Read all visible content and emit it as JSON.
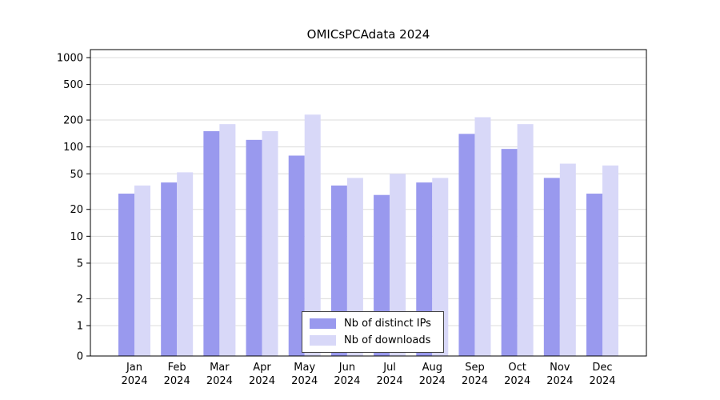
{
  "title": "OMICsPCAdata 2024",
  "legend": {
    "items": [
      {
        "label": "Nb of distinct IPs",
        "color": "#9999ee"
      },
      {
        "label": "Nb of downloads",
        "color": "#d8d8f8"
      }
    ]
  },
  "chart_data": {
    "type": "bar",
    "title": "OMICsPCAdata 2024",
    "categories": [
      "Jan 2024",
      "Feb 2024",
      "Mar 2024",
      "Apr 2024",
      "May 2024",
      "Jun 2024",
      "Jul 2024",
      "Aug 2024",
      "Sep 2024",
      "Oct 2024",
      "Nov 2024",
      "Dec 2024"
    ],
    "series": [
      {
        "name": "Nb of distinct IPs",
        "color": "#9999ee",
        "values": [
          30,
          40,
          150,
          120,
          80,
          37,
          29,
          40,
          140,
          95,
          45,
          30
        ]
      },
      {
        "name": "Nb of downloads",
        "color": "#d8d8f8",
        "values": [
          37,
          52,
          180,
          150,
          230,
          45,
          50,
          45,
          215,
          180,
          65,
          62
        ]
      }
    ],
    "yscale": "symlog",
    "yticks": [
      0,
      1,
      2,
      5,
      10,
      20,
      50,
      100,
      200,
      500,
      1000
    ],
    "ylim": [
      0,
      1000
    ],
    "grid": true,
    "grid_color": "#dcdcdc",
    "legend_position": "lower center",
    "xlabel": "",
    "ylabel": ""
  }
}
